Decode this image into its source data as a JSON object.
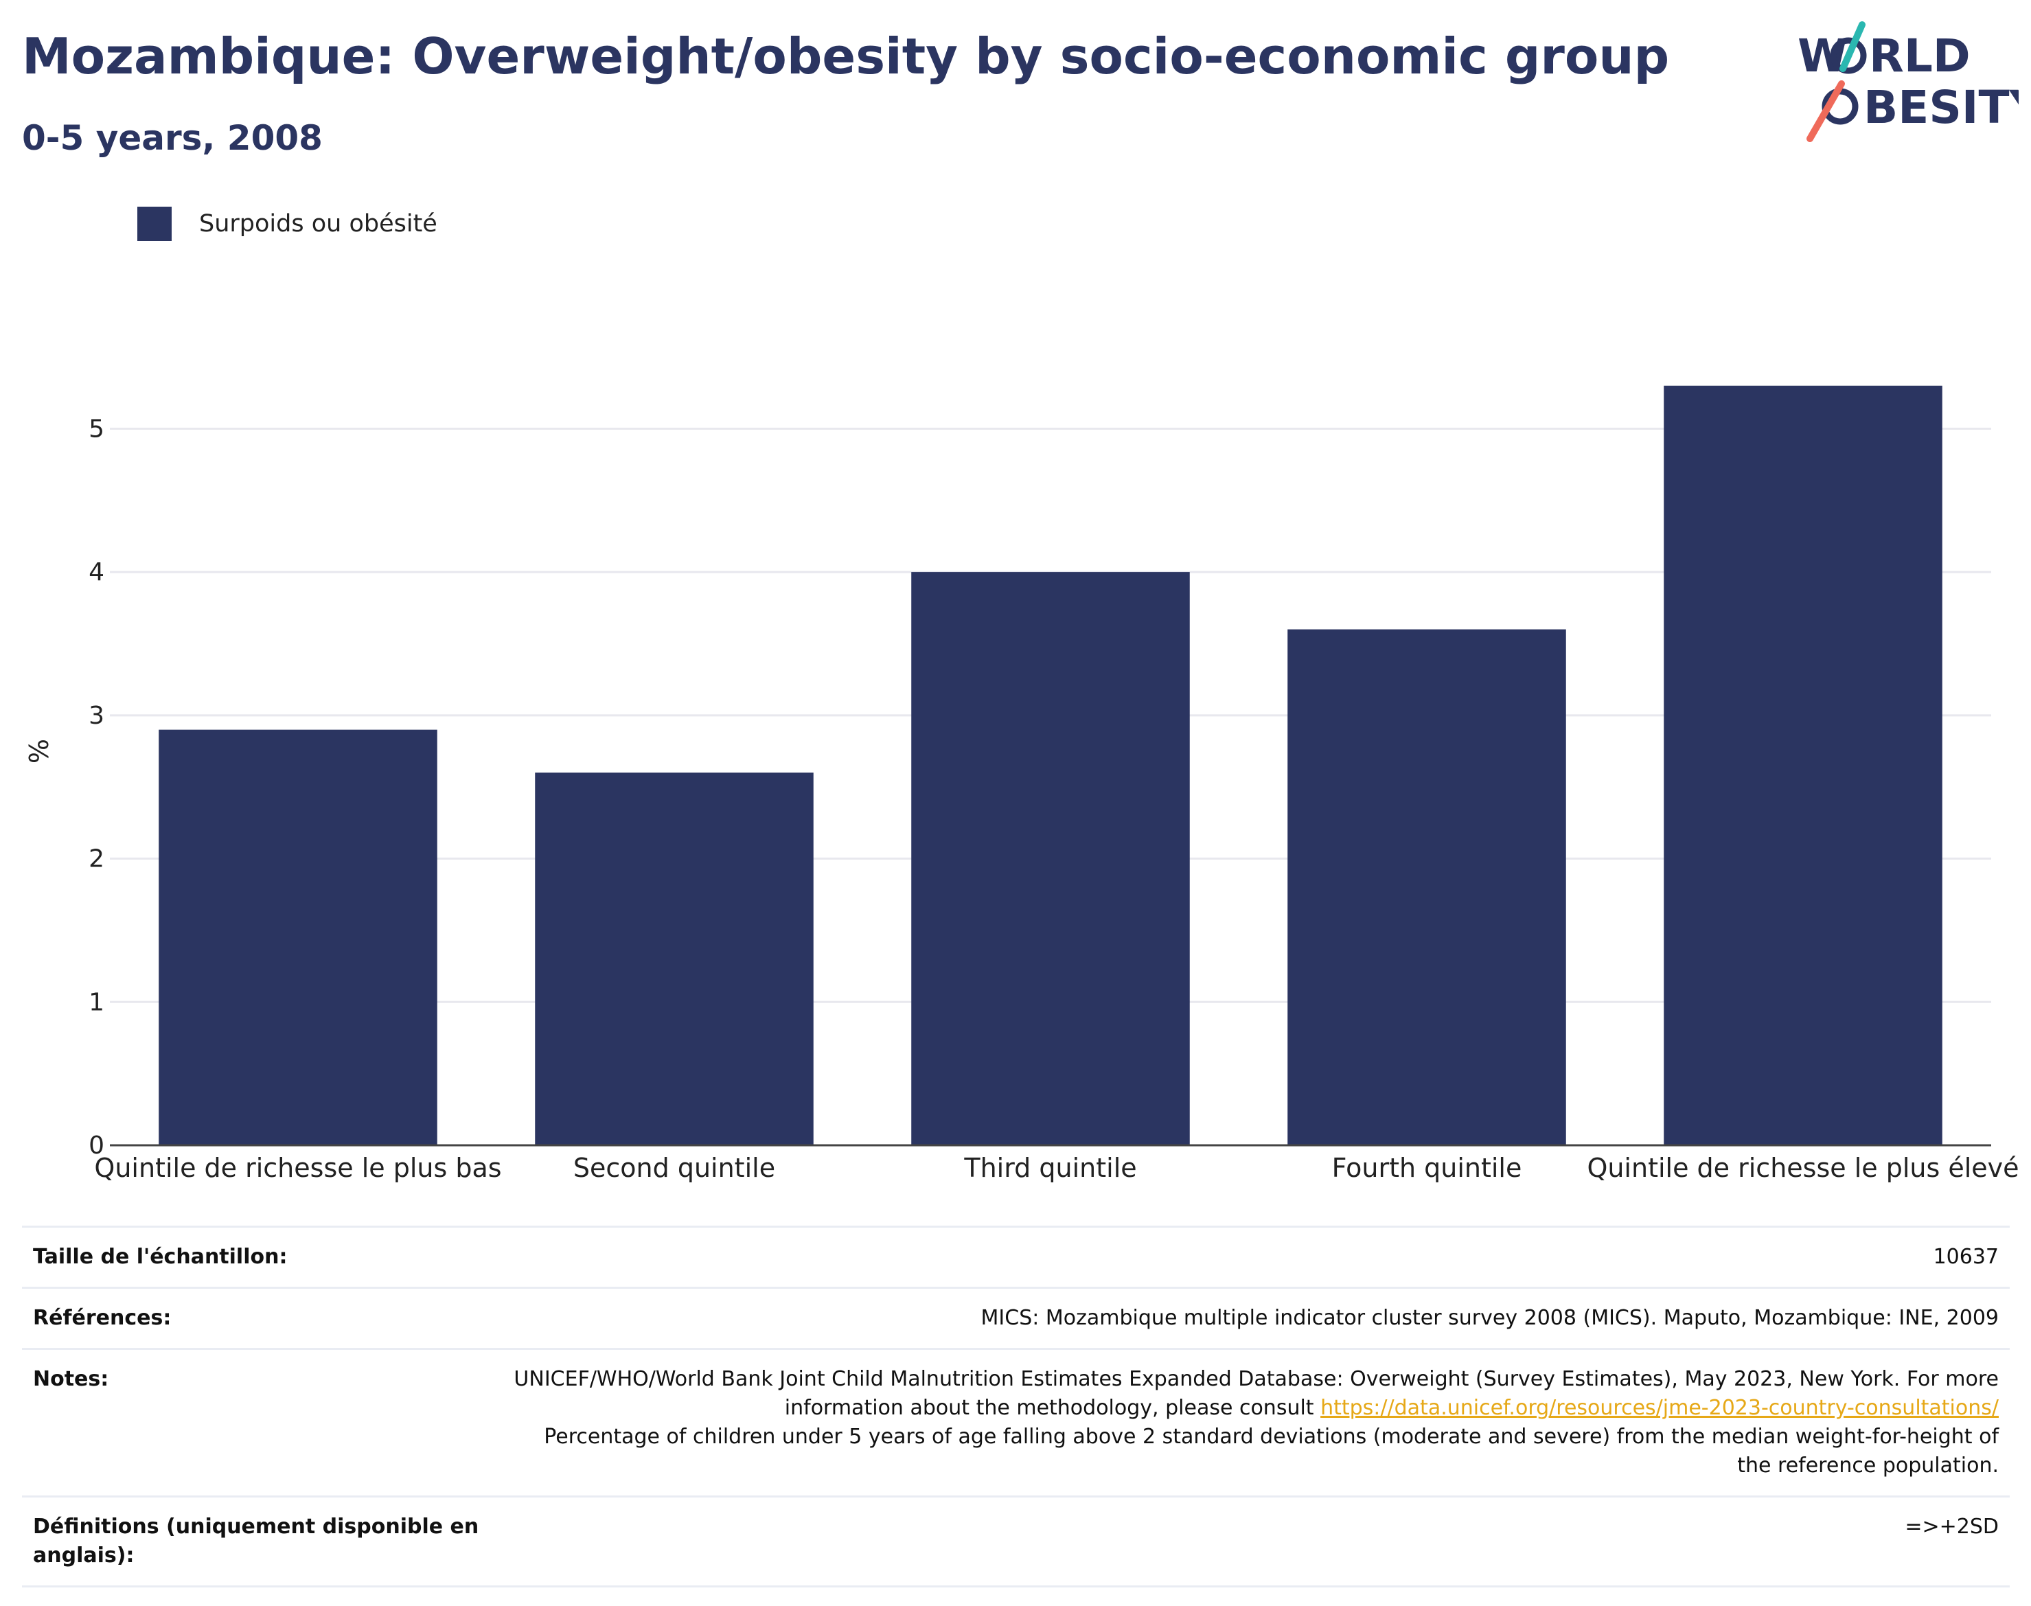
{
  "header": {
    "title": "Mozambique: Overweight/obesity by socio-economic group",
    "subtitle": "0-5 years, 2008"
  },
  "logo": {
    "line1": "W",
    "line1_rest": "RLD",
    "line2_rest": "BESITY",
    "brand_color": "#2b3561",
    "accent_teal": "#2ab7b0",
    "accent_coral": "#ef6a5a"
  },
  "colors": {
    "bar": "#2b3561",
    "grid": "#e8e8ee",
    "axis": "#444444"
  },
  "chart_data": {
    "type": "bar",
    "title": "Mozambique: Overweight/obesity by socio-economic group",
    "subtitle": "0-5 years, 2008",
    "xlabel": "",
    "ylabel": "%",
    "categories": [
      "Quintile de richesse le plus bas",
      "Second quintile",
      "Third quintile",
      "Fourth quintile",
      "Quintile de richesse le plus élevé"
    ],
    "series": [
      {
        "name": "Surpoids ou obésité",
        "values": [
          2.9,
          2.6,
          4.0,
          3.6,
          5.3
        ]
      }
    ],
    "ylim": [
      0,
      5.5
    ],
    "yticks": [
      0,
      1,
      2,
      3,
      4,
      5
    ],
    "grid": true,
    "legend": "top-left"
  },
  "info": {
    "rows": [
      {
        "key": "Taille de l'échantillon:",
        "value": "10637"
      },
      {
        "key": "Références:",
        "value": "MICS: Mozambique multiple indicator cluster survey 2008 (MICS). Maputo, Mozambique: INE, 2009"
      },
      {
        "key": "Notes:",
        "value_before": "UNICEF/WHO/World Bank Joint Child Malnutrition Estimates Expanded Database: Overweight (Survey Estimates), May 2023, New York. For more information about the methodology, please consult ",
        "link": "https://data.unicef.org/resources/jme-2023-country-consultations/",
        "value_after": "Percentage of children under 5 years of age falling above 2 standard deviations (moderate and severe) from the median weight-for-height of the reference population."
      },
      {
        "key": "Définitions (uniquement disponible en anglais):",
        "value": "=>+2SD"
      }
    ]
  }
}
